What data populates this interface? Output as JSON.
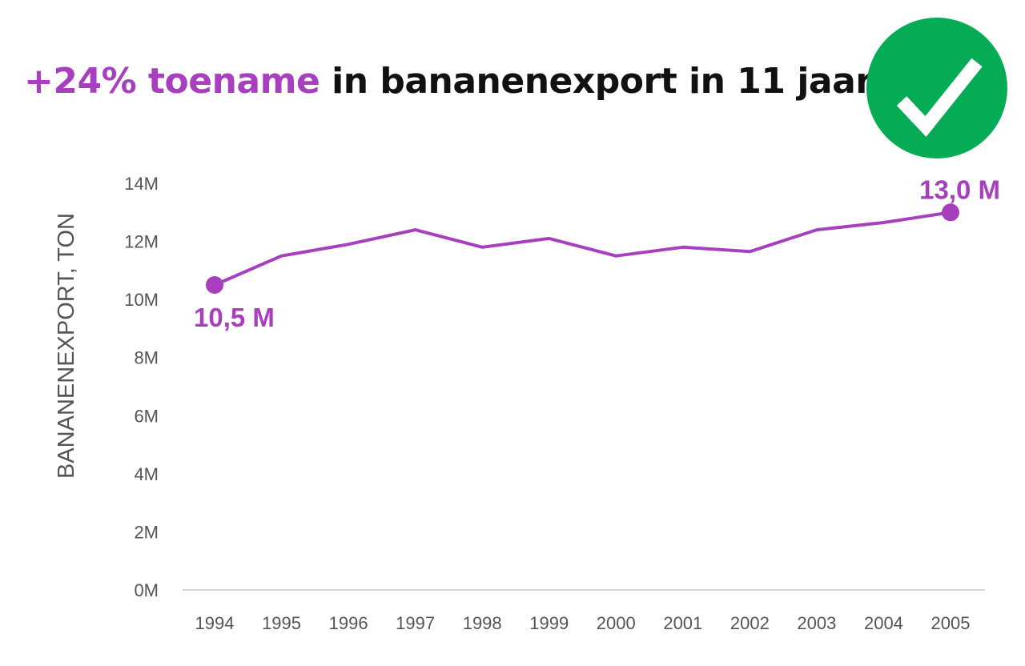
{
  "title": {
    "highlight": "+24% toename",
    "rest": " in bananenexport in 11 jaar"
  },
  "badge": {
    "icon": "check-circle-icon",
    "color": "#05AC55",
    "check_color": "#ffffff"
  },
  "colors": {
    "accent": "#A83FBF",
    "axis_text": "#555555",
    "gridline": "#D6D6D6",
    "title_text": "#111111"
  },
  "chart_data": {
    "type": "line",
    "title": "+24% toename in bananenexport in 11 jaar",
    "xlabel": "",
    "ylabel": "BANANENEXPORT, TON",
    "categories": [
      "1994",
      "1995",
      "1996",
      "1997",
      "1998",
      "1999",
      "2000",
      "2001",
      "2002",
      "2003",
      "2004",
      "2005"
    ],
    "series": [
      {
        "name": "Bananenexport",
        "values": [
          10.5,
          11.5,
          11.9,
          12.4,
          11.8,
          12.1,
          11.5,
          11.8,
          11.65,
          12.4,
          12.65,
          13.0
        ],
        "unit": "M ton"
      }
    ],
    "ylim": [
      0,
      14
    ],
    "yticks": [
      "0M",
      "2M",
      "4M",
      "6M",
      "8M",
      "10M",
      "12M",
      "14M"
    ],
    "grid": false,
    "legend": "none",
    "annotations": [
      {
        "category": "1994",
        "label": "10,5 M",
        "position": "below"
      },
      {
        "category": "2005",
        "label": "13,0 M",
        "position": "above"
      }
    ]
  }
}
